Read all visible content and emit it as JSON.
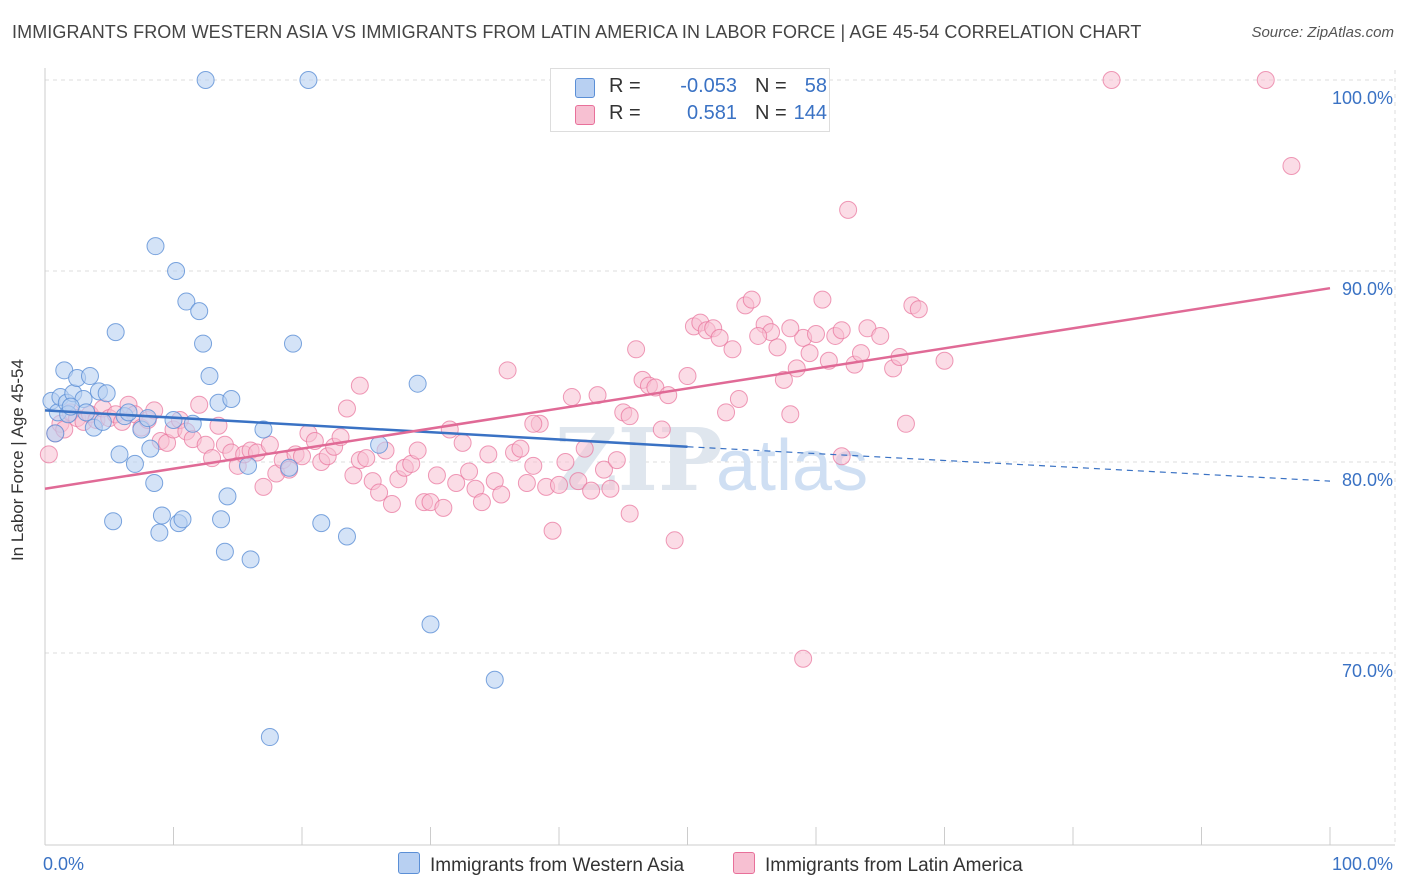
{
  "title": "IMMIGRANTS FROM WESTERN ASIA VS IMMIGRANTS FROM LATIN AMERICA IN LABOR FORCE | AGE 45-54 CORRELATION CHART",
  "source": "Source: ZipAtlas.com",
  "watermark": {
    "zip": "ZIP",
    "atlas": "atlas"
  },
  "colors": {
    "blue": "#5b8fd6",
    "blue_fill": "#b8d0f2",
    "blue_line": "#3a72c4",
    "pink": "#e8709a",
    "pink_fill": "#f7c0d2",
    "pink_line": "#e06a96",
    "axis_text": "#3a72c4",
    "grid": "#dddddd"
  },
  "legend": {
    "rows": [
      {
        "swatch": "blue",
        "r_label": "R =",
        "r_value": "-0.053",
        "n_label": "N =",
        "n_value": "58"
      },
      {
        "swatch": "pink",
        "r_label": "R =",
        "r_value": "0.581",
        "n_label": "N =",
        "n_value": "144"
      }
    ]
  },
  "bottom_legend": {
    "western_asia": "Immigrants from Western Asia",
    "latin_america": "Immigrants from Latin America"
  },
  "chart_data": {
    "type": "scatter",
    "xlabel": "",
    "ylabel": "In Labor Force | Age 45-54",
    "xlim": [
      0,
      100
    ],
    "ylim": [
      60,
      100
    ],
    "x_tick_labels": [
      "0.0%",
      "100.0%"
    ],
    "y_ticks": [
      70,
      80,
      90,
      100
    ],
    "y_tick_labels": [
      "70.0%",
      "80.0%",
      "90.0%",
      "100.0%"
    ],
    "grid": "horizontal dashed",
    "series": [
      {
        "name": "Immigrants from Western Asia",
        "color": "blue",
        "trend": {
          "x": [
            0,
            50
          ],
          "y": [
            82.7,
            80.8
          ],
          "dashed_to": [
            100,
            79.0
          ]
        },
        "points": [
          [
            0.5,
            83.2
          ],
          [
            1,
            82.6
          ],
          [
            1.2,
            83.4
          ],
          [
            1.5,
            84.8
          ],
          [
            1.7,
            83.1
          ],
          [
            1.8,
            82.5
          ],
          [
            2.2,
            83.6
          ],
          [
            2.5,
            84.4
          ],
          [
            3,
            83.3
          ],
          [
            3.2,
            82.6
          ],
          [
            3.5,
            84.5
          ],
          [
            3.8,
            81.8
          ],
          [
            4.2,
            83.7
          ],
          [
            4.5,
            82.1
          ],
          [
            4.8,
            83.6
          ],
          [
            5.3,
            76.9
          ],
          [
            5.5,
            86.8
          ],
          [
            5.8,
            80.4
          ],
          [
            6.2,
            82.4
          ],
          [
            6.5,
            82.6
          ],
          [
            7,
            79.9
          ],
          [
            7.5,
            81.7
          ],
          [
            8,
            82.3
          ],
          [
            8.2,
            80.7
          ],
          [
            8.5,
            78.9
          ],
          [
            8.6,
            91.3
          ],
          [
            8.9,
            76.3
          ],
          [
            9.1,
            77.2
          ],
          [
            10,
            82.2
          ],
          [
            10.2,
            90.0
          ],
          [
            10.4,
            76.8
          ],
          [
            10.7,
            77.0
          ],
          [
            11,
            88.4
          ],
          [
            11.5,
            82.0
          ],
          [
            12,
            87.9
          ],
          [
            12.3,
            86.2
          ],
          [
            12.5,
            100.0
          ],
          [
            12.8,
            84.5
          ],
          [
            13.5,
            83.1
          ],
          [
            13.7,
            77.0
          ],
          [
            14,
            75.3
          ],
          [
            14.2,
            78.2
          ],
          [
            14.5,
            83.3
          ],
          [
            15.8,
            79.8
          ],
          [
            16,
            74.9
          ],
          [
            17,
            81.7
          ],
          [
            17.5,
            65.6
          ],
          [
            19,
            79.7
          ],
          [
            19.3,
            86.2
          ],
          [
            20.5,
            100.0
          ],
          [
            21.5,
            76.8
          ],
          [
            23.5,
            76.1
          ],
          [
            26,
            80.9
          ],
          [
            29,
            84.1
          ],
          [
            30,
            71.5
          ],
          [
            35,
            68.6
          ],
          [
            0.8,
            81.5
          ],
          [
            2,
            82.9
          ]
        ]
      },
      {
        "name": "Immigrants from Latin America",
        "color": "pink",
        "trend": {
          "x": [
            0,
            100
          ],
          "y": [
            78.6,
            89.1
          ]
        },
        "points": [
          [
            0.3,
            80.4
          ],
          [
            0.8,
            81.5
          ],
          [
            1.2,
            82.0
          ],
          [
            1.5,
            81.7
          ],
          [
            2,
            82.6
          ],
          [
            2.5,
            82.3
          ],
          [
            3,
            82.1
          ],
          [
            3.5,
            82.5
          ],
          [
            4,
            82.2
          ],
          [
            4.5,
            82.8
          ],
          [
            5,
            82.3
          ],
          [
            5.5,
            82.5
          ],
          [
            6,
            82.1
          ],
          [
            6.5,
            83.0
          ],
          [
            7,
            82.5
          ],
          [
            7.5,
            81.8
          ],
          [
            8,
            82.2
          ],
          [
            8.5,
            82.7
          ],
          [
            9,
            81.1
          ],
          [
            9.5,
            81.0
          ],
          [
            10,
            81.7
          ],
          [
            10.5,
            82.2
          ],
          [
            11,
            81.6
          ],
          [
            11.5,
            81.2
          ],
          [
            12,
            83.0
          ],
          [
            12.5,
            80.9
          ],
          [
            13,
            80.2
          ],
          [
            13.5,
            81.9
          ],
          [
            14,
            80.9
          ],
          [
            14.5,
            80.5
          ],
          [
            15,
            79.8
          ],
          [
            15.5,
            80.4
          ],
          [
            16,
            80.6
          ],
          [
            16.5,
            80.5
          ],
          [
            17,
            78.7
          ],
          [
            17.5,
            80.9
          ],
          [
            18,
            79.4
          ],
          [
            18.5,
            80.1
          ],
          [
            19,
            79.6
          ],
          [
            19.5,
            80.4
          ],
          [
            20,
            80.3
          ],
          [
            20.5,
            81.5
          ],
          [
            21,
            81.1
          ],
          [
            21.5,
            80.0
          ],
          [
            22,
            80.3
          ],
          [
            22.5,
            80.8
          ],
          [
            23,
            81.3
          ],
          [
            23.5,
            82.8
          ],
          [
            24,
            79.3
          ],
          [
            24.5,
            80.1
          ],
          [
            25,
            80.2
          ],
          [
            25.5,
            79.0
          ],
          [
            26,
            78.4
          ],
          [
            26.5,
            80.6
          ],
          [
            27,
            77.8
          ],
          [
            27.5,
            79.1
          ],
          [
            28,
            79.7
          ],
          [
            28.5,
            79.9
          ],
          [
            29,
            80.6
          ],
          [
            29.5,
            77.9
          ],
          [
            30,
            77.9
          ],
          [
            30.5,
            79.3
          ],
          [
            31,
            77.6
          ],
          [
            31.5,
            81.7
          ],
          [
            32,
            78.9
          ],
          [
            32.5,
            81.0
          ],
          [
            33,
            79.5
          ],
          [
            33.5,
            78.6
          ],
          [
            34,
            77.9
          ],
          [
            34.5,
            80.4
          ],
          [
            35,
            79.0
          ],
          [
            35.5,
            78.3
          ],
          [
            36,
            84.8
          ],
          [
            36.5,
            80.5
          ],
          [
            37,
            80.7
          ],
          [
            37.5,
            78.9
          ],
          [
            38,
            79.8
          ],
          [
            38.5,
            82.0
          ],
          [
            39,
            78.7
          ],
          [
            39.5,
            76.4
          ],
          [
            40,
            78.8
          ],
          [
            40.5,
            80.0
          ],
          [
            41,
            83.4
          ],
          [
            41.5,
            79.0
          ],
          [
            42,
            80.7
          ],
          [
            42.5,
            78.5
          ],
          [
            43,
            83.5
          ],
          [
            43.5,
            79.6
          ],
          [
            44,
            78.6
          ],
          [
            44.5,
            80.1
          ],
          [
            45,
            82.6
          ],
          [
            45.5,
            77.3
          ],
          [
            46,
            85.9
          ],
          [
            46.5,
            84.3
          ],
          [
            47,
            84.0
          ],
          [
            47.5,
            83.9
          ],
          [
            48,
            81.7
          ],
          [
            48.5,
            83.5
          ],
          [
            49,
            75.9
          ],
          [
            50,
            84.5
          ],
          [
            50.5,
            87.1
          ],
          [
            51,
            87.3
          ],
          [
            51.5,
            86.9
          ],
          [
            52,
            87.0
          ],
          [
            52.5,
            86.5
          ],
          [
            53,
            82.6
          ],
          [
            53.5,
            85.9
          ],
          [
            54,
            83.3
          ],
          [
            54.5,
            88.2
          ],
          [
            55,
            88.5
          ],
          [
            56,
            87.2
          ],
          [
            56.5,
            86.8
          ],
          [
            57,
            86.0
          ],
          [
            57.5,
            84.3
          ],
          [
            58,
            82.5
          ],
          [
            58.5,
            84.9
          ],
          [
            59,
            86.5
          ],
          [
            59.5,
            85.7
          ],
          [
            60,
            86.7
          ],
          [
            60.5,
            88.5
          ],
          [
            61,
            85.3
          ],
          [
            61.5,
            86.6
          ],
          [
            62,
            80.3
          ],
          [
            62.5,
            93.2
          ],
          [
            63,
            85.1
          ],
          [
            63.5,
            85.7
          ],
          [
            64,
            87.0
          ],
          [
            65,
            86.6
          ],
          [
            66,
            84.9
          ],
          [
            66.5,
            85.5
          ],
          [
            67,
            82.0
          ],
          [
            67.5,
            88.2
          ],
          [
            68,
            88.0
          ],
          [
            70,
            85.3
          ],
          [
            83,
            100.0
          ],
          [
            95,
            100.0
          ],
          [
            97,
            95.5
          ],
          [
            59,
            69.7
          ],
          [
            62,
            86.9
          ],
          [
            58,
            87.0
          ],
          [
            55.5,
            86.6
          ],
          [
            45.5,
            82.4
          ],
          [
            38,
            82.0
          ],
          [
            24.5,
            84.0
          ]
        ]
      }
    ]
  }
}
